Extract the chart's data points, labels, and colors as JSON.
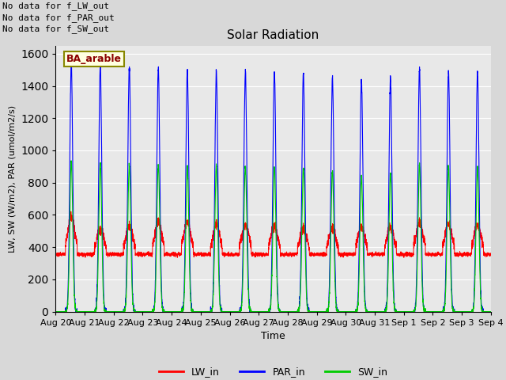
{
  "title": "Solar Radiation",
  "xlabel": "Time",
  "ylabel": "LW, SW (W/m2), PAR (umol/m2/s)",
  "ylim": [
    0,
    1650
  ],
  "yticks": [
    0,
    200,
    400,
    600,
    800,
    1000,
    1200,
    1400,
    1600
  ],
  "xlabels": [
    "Aug 20",
    "Aug 21",
    "Aug 22",
    "Aug 23",
    "Aug 24",
    "Aug 25",
    "Aug 26",
    "Aug 27",
    "Aug 28",
    "Aug 29",
    "Aug 30",
    "Aug 31",
    "Sep 1",
    "Sep 2",
    "Sep 3",
    "Sep 4"
  ],
  "annotations": [
    "No data for f_LW_out",
    "No data for f_PAR_out",
    "No data for f_SW_out"
  ],
  "site_label": "BA_arable",
  "lw_color": "#ff0000",
  "par_color": "#0000ff",
  "sw_color": "#00cc00",
  "bg_color": "#d8d8d8",
  "plot_bg_color": "#e8e8e8",
  "grid_color": "#ffffff",
  "legend_labels": [
    "LW_in",
    "PAR_in",
    "SW_in"
  ],
  "num_days": 15,
  "lw_base_night": 355,
  "lw_base_day": 375,
  "par_peaks": [
    1545,
    1530,
    1520,
    1510,
    1505,
    1500,
    1495,
    1490,
    1490,
    1460,
    1435,
    1450,
    1510,
    1490,
    1490
  ],
  "sw_peaks": [
    930,
    920,
    910,
    910,
    900,
    905,
    900,
    895,
    895,
    875,
    840,
    860,
    910,
    895,
    890
  ],
  "lw_peaks": [
    590,
    510,
    530,
    560,
    560,
    540,
    540,
    530,
    515,
    520,
    525,
    525,
    555,
    545,
    540
  ]
}
